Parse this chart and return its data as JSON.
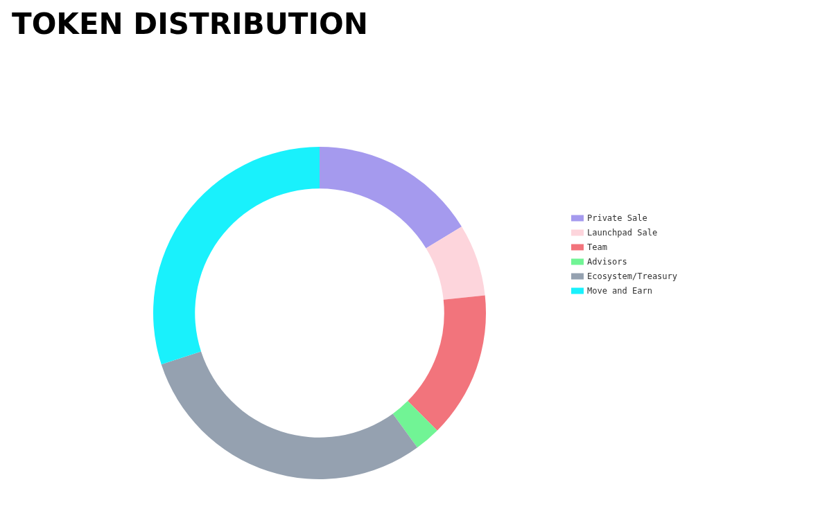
{
  "chart_data": {
    "type": "donut",
    "title": "TOKEN DISTRIBUTION",
    "categories": [
      "Private Sale",
      "Launchpad Sale",
      "Team",
      "Advisors",
      "Ecosystem/Treasury",
      "Move and Earn"
    ],
    "values": [
      16.3,
      7,
      14.2,
      2.5,
      30,
      30
    ],
    "colors": [
      "#a59aee",
      "#fdd5dc",
      "#f2747c",
      "#71f495",
      "#95a1b0",
      "#19f1fc"
    ],
    "legend": "right"
  }
}
